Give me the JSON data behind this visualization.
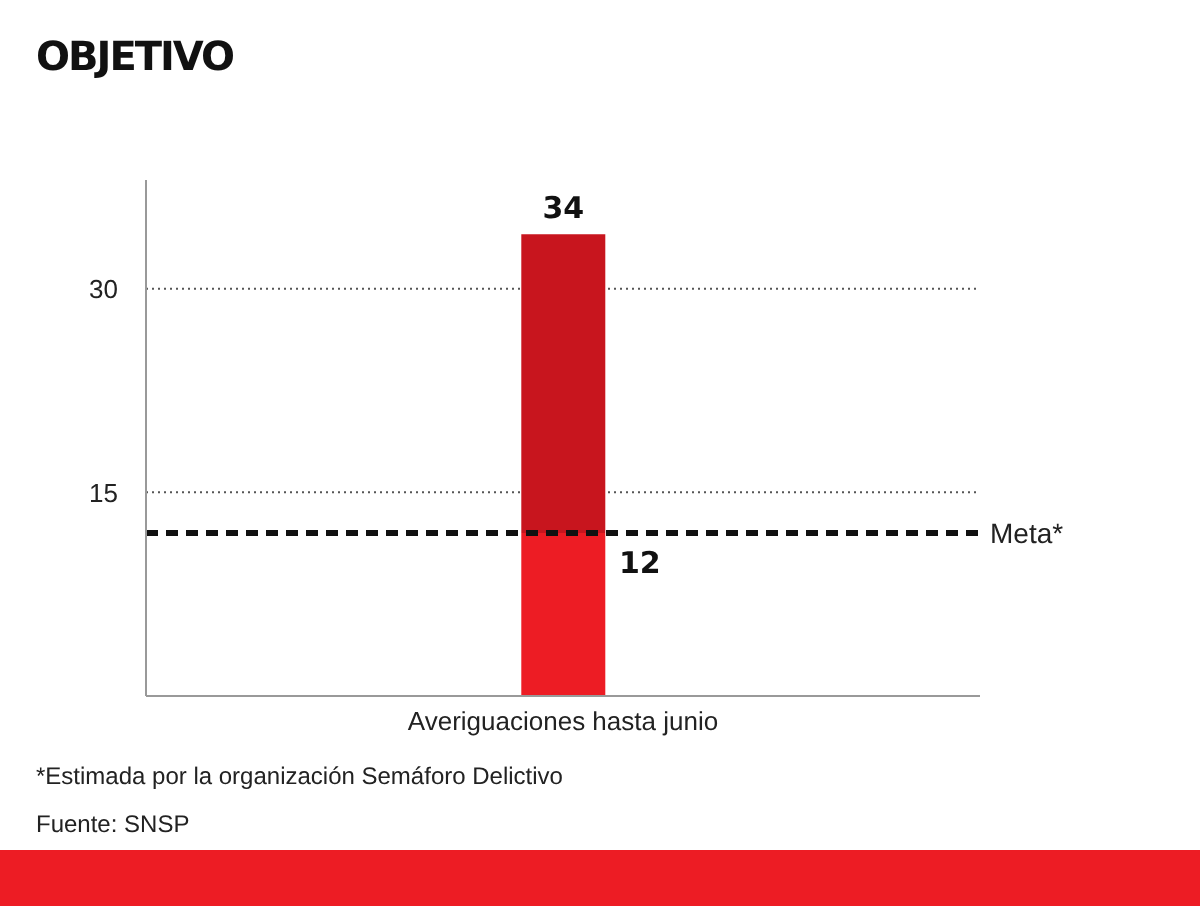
{
  "chart_data": {
    "type": "bar",
    "title": "OBJETIVO",
    "categories": [
      "Averiguaciones hasta junio"
    ],
    "stacked": true,
    "series": [
      {
        "color": "#ed1c24",
        "values": [
          12
        ]
      },
      {
        "color": "#c8151e",
        "values": [
          22
        ]
      }
    ],
    "totals": [
      "34"
    ],
    "ylim": [
      0,
      38
    ],
    "yticks": [
      15,
      30
    ],
    "grid": "y",
    "ref_lines": [
      {
        "axis": "y",
        "value": 12,
        "label": "Meta*",
        "color": "#111111",
        "line_style": "dashed"
      }
    ],
    "annotations": [
      {
        "text": "12",
        "x": "Averiguaciones hasta junio",
        "y": 12
      },
      "*Estimada por la organización Semáforo Delictivo",
      "Fuente: SNSP"
    ]
  }
}
